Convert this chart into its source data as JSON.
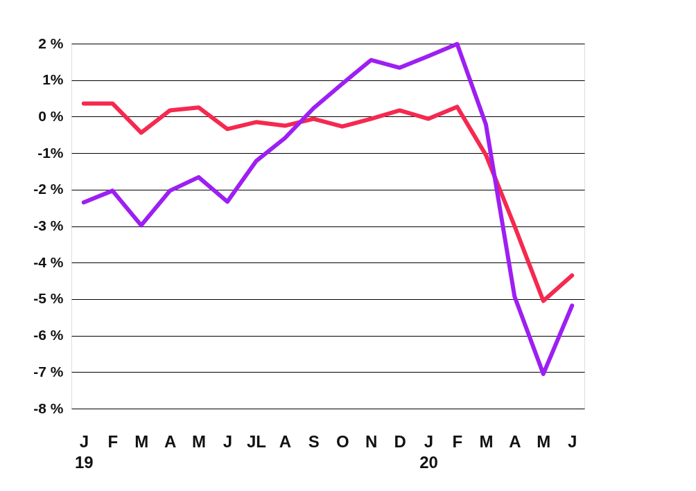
{
  "chart_data": {
    "type": "line",
    "categories": [
      "J\n19",
      "F",
      "M",
      "A",
      "M",
      "J",
      "JL",
      "A",
      "S",
      "O",
      "N",
      "D",
      "J\n20",
      "F",
      "M",
      "A",
      "M",
      "J"
    ],
    "series": [
      {
        "color": "#f5294f",
        "values": [
          0.36,
          0.36,
          -0.44,
          0.17,
          0.25,
          -0.34,
          -0.15,
          -0.25,
          -0.06,
          -0.27,
          -0.06,
          0.17,
          -0.06,
          0.27,
          -1.05,
          -3.0,
          -5.05,
          -4.35
        ]
      },
      {
        "color": "#9d1ff2",
        "values": [
          -2.35,
          -2.03,
          -2.98,
          -2.03,
          -1.66,
          -2.33,
          -1.22,
          -0.59,
          0.23,
          0.9,
          1.55,
          1.34,
          1.66,
          1.99,
          -0.21,
          -4.93,
          -7.05,
          -5.18
        ]
      }
    ],
    "ylim": [
      -8,
      2
    ],
    "yticks": [
      {
        "value": 2,
        "label": "2 %"
      },
      {
        "value": 1,
        "label": "1%"
      },
      {
        "value": 0,
        "label": "0 %"
      },
      {
        "value": -1,
        "label": "-1%"
      },
      {
        "value": -2,
        "label": "-2 %"
      },
      {
        "value": -3,
        "label": "-3 %"
      },
      {
        "value": -4,
        "label": "-4 %"
      },
      {
        "value": -5,
        "label": "-5 %"
      },
      {
        "value": -6,
        "label": "-6 %"
      },
      {
        "value": -7,
        "label": "-7 %"
      },
      {
        "value": -8,
        "label": "-8 %"
      }
    ],
    "grid": "y",
    "legend": false,
    "marker": "none",
    "line_style": "solid"
  }
}
